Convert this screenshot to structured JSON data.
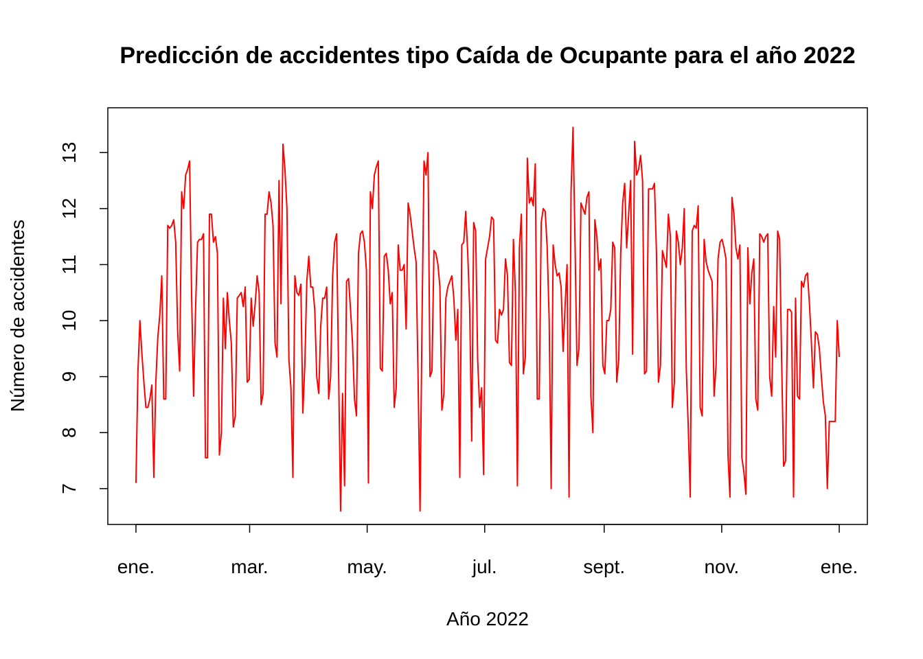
{
  "chart_data": {
    "type": "line",
    "title": "Predicción de accidentes tipo Caída de Ocupante  para el año 2022",
    "xlabel": "Año 2022",
    "ylabel": "Número de accidentes",
    "x_ticks": [
      {
        "label": "ene.",
        "day": 0
      },
      {
        "label": "mar.",
        "day": 59
      },
      {
        "label": "may.",
        "day": 120
      },
      {
        "label": "jul.",
        "day": 181
      },
      {
        "label": "sept.",
        "day": 243
      },
      {
        "label": "nov.",
        "day": 304
      },
      {
        "label": "ene.",
        "day": 365
      }
    ],
    "y_ticks": [
      7,
      8,
      9,
      10,
      11,
      12,
      13
    ],
    "xlim": [
      -14.6,
      379.6
    ],
    "ylim": [
      6.36,
      13.8
    ],
    "grid": false,
    "line_color": "#ff0000",
    "series": [
      {
        "values": [
          7.1,
          9.1,
          10.0,
          9.4,
          8.9,
          8.45,
          8.45,
          8.6,
          8.85,
          7.2,
          8.9,
          9.7,
          10.1,
          10.8,
          8.6,
          8.6,
          11.7,
          11.65,
          11.7,
          11.8,
          11.4,
          9.8,
          9.1,
          12.3,
          12.0,
          12.6,
          12.7,
          12.85,
          10.5,
          8.65,
          10.2,
          11.4,
          11.45,
          11.45,
          11.55,
          7.55,
          7.55,
          11.9,
          11.9,
          11.4,
          11.5,
          11.2,
          7.6,
          8.0,
          10.4,
          9.5,
          10.5,
          10.0,
          9.6,
          8.1,
          8.3,
          10.4,
          10.45,
          10.5,
          10.25,
          10.6,
          8.9,
          8.95,
          10.4,
          9.9,
          10.3,
          10.8,
          10.5,
          8.5,
          8.7,
          11.9,
          11.9,
          12.3,
          12.1,
          11.7,
          9.6,
          9.35,
          12.5,
          10.3,
          13.15,
          12.7,
          12.0,
          9.3,
          8.8,
          7.2,
          10.8,
          10.5,
          10.45,
          10.65,
          8.35,
          9.2,
          10.7,
          11.15,
          10.6,
          10.6,
          10.2,
          9.0,
          8.7,
          9.9,
          10.4,
          10.4,
          10.6,
          8.6,
          9.0,
          10.8,
          11.4,
          11.55,
          9.1,
          6.6,
          8.7,
          7.05,
          10.7,
          10.75,
          10.2,
          9.6,
          8.6,
          8.3,
          11.2,
          11.55,
          11.6,
          11.4,
          10.9,
          7.1,
          12.3,
          12.0,
          12.6,
          12.75,
          12.85,
          9.15,
          9.1,
          11.15,
          11.2,
          10.9,
          10.3,
          10.5,
          8.45,
          8.8,
          11.35,
          10.9,
          10.9,
          11.0,
          9.85,
          12.1,
          11.9,
          11.6,
          11.3,
          11.05,
          9.0,
          6.6,
          10.0,
          12.85,
          12.6,
          13.0,
          9.0,
          9.1,
          11.25,
          11.2,
          11.0,
          10.6,
          8.4,
          8.7,
          10.4,
          10.6,
          10.7,
          10.8,
          10.4,
          9.65,
          10.2,
          7.2,
          11.35,
          11.4,
          11.95,
          11.2,
          10.2,
          7.85,
          11.75,
          11.6,
          9.3,
          8.45,
          8.8,
          7.25,
          11.1,
          11.3,
          11.5,
          11.85,
          11.8,
          9.65,
          9.6,
          10.2,
          10.1,
          10.2,
          11.1,
          10.8,
          9.25,
          9.2,
          11.45,
          10.5,
          7.05,
          11.3,
          11.9,
          9.05,
          9.35,
          12.9,
          12.1,
          12.2,
          12.05,
          12.8,
          8.6,
          8.6,
          11.75,
          12.0,
          11.95,
          11.3,
          10.0,
          7.0,
          11.35,
          11.0,
          10.8,
          10.85,
          10.6,
          9.45,
          10.25,
          11.0,
          6.85,
          12.3,
          13.45,
          11.4,
          9.2,
          9.5,
          12.1,
          12.0,
          11.9,
          12.2,
          12.3,
          8.65,
          8.0,
          11.8,
          11.5,
          10.9,
          11.1,
          9.2,
          9.05,
          10.0,
          10.0,
          10.2,
          11.4,
          11.3,
          8.9,
          9.3,
          11.2,
          12.1,
          12.45,
          11.3,
          11.9,
          12.5,
          9.4,
          13.2,
          12.6,
          12.7,
          12.95,
          12.5,
          9.05,
          9.1,
          12.35,
          12.35,
          12.35,
          12.45,
          11.2,
          8.9,
          9.2,
          11.25,
          11.1,
          10.95,
          11.9,
          11.5,
          8.45,
          8.9,
          11.6,
          11.4,
          11.0,
          11.3,
          12.0,
          9.15,
          8.1,
          6.85,
          11.6,
          11.7,
          11.65,
          12.05,
          8.45,
          8.3,
          11.45,
          11.05,
          10.9,
          10.8,
          10.7,
          8.65,
          9.2,
          11.1,
          11.4,
          11.45,
          11.3,
          11.1,
          7.6,
          6.85,
          12.2,
          11.9,
          11.3,
          11.1,
          11.35,
          7.55,
          7.3,
          6.9,
          11.3,
          10.3,
          10.85,
          11.1,
          8.6,
          8.4,
          11.55,
          11.5,
          11.4,
          11.5,
          11.55,
          9.0,
          8.65,
          10.25,
          9.35,
          11.6,
          11.45,
          9.3,
          7.4,
          7.5,
          10.2,
          10.2,
          10.15,
          6.85,
          10.4,
          8.65,
          8.6,
          10.7,
          10.6,
          10.8,
          10.85,
          10.3,
          9.6,
          8.8,
          9.8,
          9.75,
          9.5,
          9.0,
          8.55,
          8.3,
          7.0,
          8.2,
          8.2,
          8.2,
          8.2,
          10.0,
          9.35
        ]
      }
    ]
  }
}
